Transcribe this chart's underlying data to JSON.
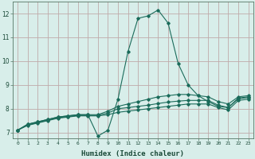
{
  "xlabel": "Humidex (Indice chaleur)",
  "ylabel": "",
  "bg_color": "#d8eeea",
  "grid_color": "#c0aaaa",
  "line_color": "#1a6b5a",
  "xlim": [
    -0.5,
    23.5
  ],
  "ylim": [
    6.75,
    12.5
  ],
  "xticks": [
    0,
    1,
    2,
    3,
    4,
    5,
    6,
    7,
    8,
    9,
    10,
    11,
    12,
    13,
    14,
    15,
    16,
    17,
    18,
    19,
    20,
    21,
    22,
    23
  ],
  "yticks": [
    7,
    8,
    9,
    10,
    11,
    12
  ],
  "x": [
    0,
    1,
    2,
    3,
    4,
    5,
    6,
    7,
    8,
    9,
    10,
    11,
    12,
    13,
    14,
    15,
    16,
    17,
    18,
    19,
    20,
    21,
    22,
    23
  ],
  "y_main": [
    7.1,
    7.35,
    7.45,
    7.55,
    7.65,
    7.7,
    7.75,
    7.75,
    6.85,
    7.1,
    8.4,
    10.4,
    11.8,
    11.9,
    12.15,
    11.6,
    9.9,
    9.0,
    8.55,
    8.3,
    8.1,
    8.05,
    8.45,
    8.5
  ],
  "y_low": [
    7.1,
    7.3,
    7.4,
    7.5,
    7.6,
    7.65,
    7.7,
    7.7,
    7.7,
    7.75,
    7.85,
    7.9,
    7.95,
    8.0,
    8.05,
    8.1,
    8.15,
    8.2,
    8.2,
    8.2,
    8.05,
    7.95,
    8.35,
    8.4
  ],
  "y_mid": [
    7.1,
    7.32,
    7.42,
    7.52,
    7.62,
    7.67,
    7.72,
    7.72,
    7.72,
    7.82,
    8.0,
    8.05,
    8.1,
    8.15,
    8.22,
    8.28,
    8.32,
    8.35,
    8.35,
    8.35,
    8.15,
    8.05,
    8.42,
    8.47
  ],
  "y_high": [
    7.1,
    7.35,
    7.45,
    7.55,
    7.65,
    7.7,
    7.75,
    7.75,
    7.75,
    7.9,
    8.1,
    8.2,
    8.3,
    8.4,
    8.5,
    8.55,
    8.6,
    8.6,
    8.55,
    8.5,
    8.3,
    8.2,
    8.5,
    8.55
  ]
}
